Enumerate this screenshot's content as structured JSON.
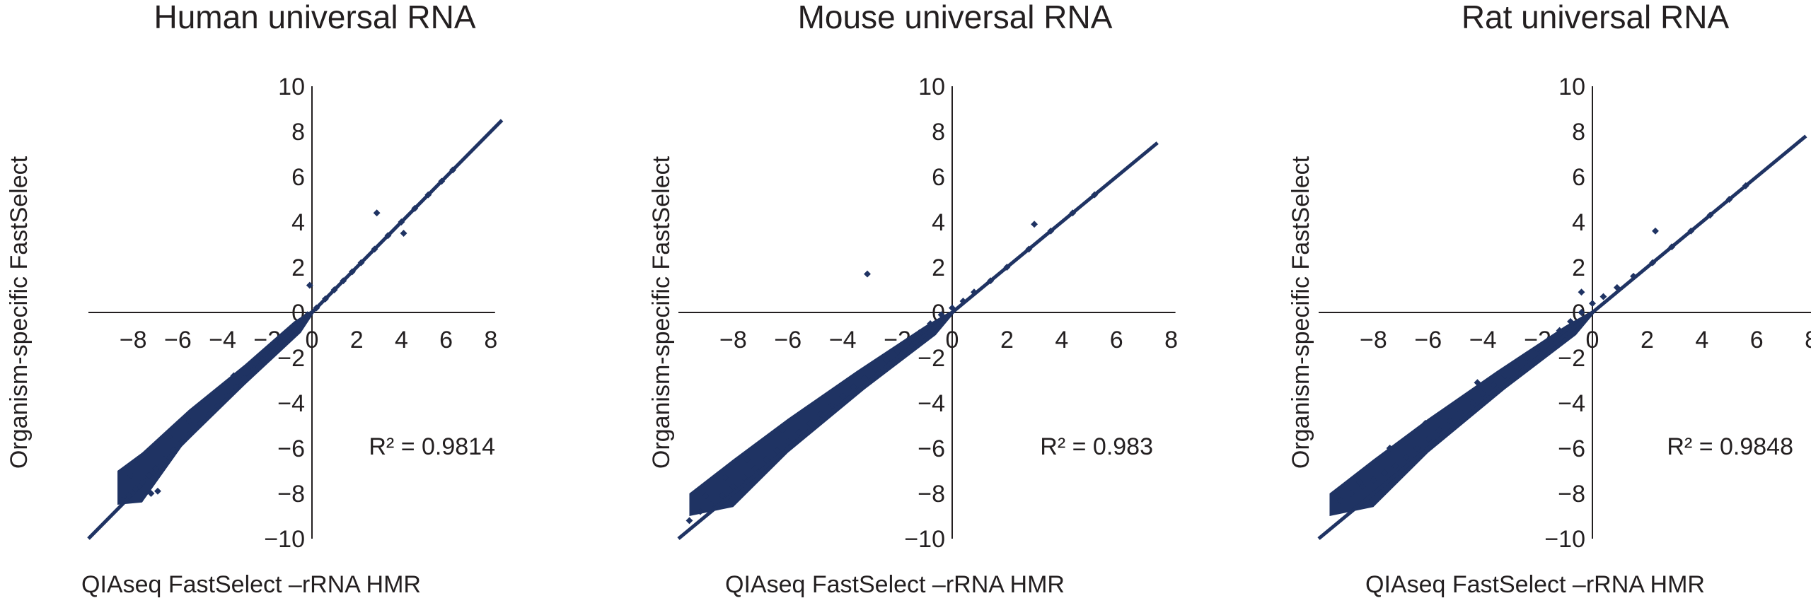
{
  "chart_data": [
    {
      "type": "scatter",
      "title": "Human universal RNA",
      "xlabel": "QIAseq FastSelect –rRNA HMR",
      "ylabel": "Organism-specific FastSelect",
      "xlim": [
        -10,
        8
      ],
      "ylim": [
        -10,
        10
      ],
      "xticks": [
        -8,
        -6,
        -4,
        -2,
        0,
        2,
        4,
        6,
        8
      ],
      "yticks": [
        -10,
        -8,
        -6,
        -4,
        -2,
        0,
        2,
        4,
        6,
        8,
        10
      ],
      "annotation": "R² = 0.9814",
      "grid": false,
      "trendline": {
        "x": [
          -10,
          8.5
        ],
        "y": [
          -10,
          8.5
        ]
      },
      "series": [
        {
          "color": "#1f3363",
          "x": [
            -8.5,
            -8.2,
            -7.9,
            -7.6,
            -7.3,
            -7.0,
            -6.6,
            -6.2,
            -5.8,
            -5.4,
            -5.0,
            -4.6,
            -4.2,
            -3.8,
            -3.4,
            -3.0,
            -2.6,
            -2.2,
            -1.8,
            -1.4,
            -1.0,
            -0.6,
            -0.2,
            0.2,
            0.6,
            1.0,
            1.4,
            1.8,
            2.2,
            2.8,
            3.4,
            4.0,
            4.6,
            5.2,
            5.8,
            6.3,
            -7.8,
            -6.9,
            -5.5,
            -3.5,
            -0.1,
            2.9,
            4.1,
            -8.1,
            -7.2,
            -6.4
          ],
          "y": [
            -8.3,
            -8.1,
            -7.8,
            -7.5,
            -7.2,
            -6.9,
            -6.5,
            -6.1,
            -5.7,
            -5.3,
            -4.9,
            -4.5,
            -4.1,
            -3.7,
            -3.3,
            -2.9,
            -2.5,
            -2.1,
            -1.7,
            -1.3,
            -0.9,
            -0.5,
            -0.1,
            0.2,
            0.6,
            1.0,
            1.4,
            1.8,
            2.2,
            2.8,
            3.4,
            4.0,
            4.6,
            5.2,
            5.8,
            6.3,
            -6.5,
            -7.9,
            -4.8,
            -2.8,
            1.2,
            4.4,
            3.5,
            -7.2,
            -8.0,
            -5.5
          ]
        }
      ]
    },
    {
      "type": "scatter",
      "title": "Mouse universal RNA",
      "xlabel": "QIAseq FastSelect –rRNA HMR",
      "ylabel": "Organism-specific FastSelect",
      "xlim": [
        -10,
        8
      ],
      "ylim": [
        -10,
        10
      ],
      "xticks": [
        -8,
        -6,
        -4,
        -2,
        0,
        2,
        4,
        6,
        8
      ],
      "yticks": [
        -10,
        -8,
        -6,
        -4,
        -2,
        0,
        2,
        4,
        6,
        8,
        10
      ],
      "annotation": "R² = 0.983",
      "grid": false,
      "trendline": {
        "x": [
          -10,
          7.5
        ],
        "y": [
          -10,
          7.5
        ]
      },
      "series": [
        {
          "color": "#1f3363",
          "x": [
            -9.6,
            -9.2,
            -8.8,
            -8.4,
            -8.0,
            -7.6,
            -7.2,
            -6.8,
            -6.4,
            -6.0,
            -5.6,
            -5.2,
            -4.8,
            -4.4,
            -4.0,
            -3.6,
            -3.2,
            -2.8,
            -2.4,
            -2.0,
            -1.6,
            -1.2,
            -0.8,
            -0.4,
            0.0,
            0.4,
            0.8,
            1.4,
            2.0,
            2.8,
            3.6,
            4.4,
            5.2,
            -3.1,
            3.0,
            -9.0,
            -8.3,
            -7.5,
            -6.2
          ],
          "y": [
            -9.2,
            -8.8,
            -8.5,
            -8.1,
            -7.7,
            -7.3,
            -6.9,
            -6.5,
            -6.1,
            -5.7,
            -5.3,
            -4.9,
            -4.5,
            -4.1,
            -3.7,
            -3.3,
            -2.9,
            -2.5,
            -2.1,
            -1.7,
            -1.3,
            -0.9,
            -0.5,
            -0.1,
            0.2,
            0.5,
            0.9,
            1.4,
            2.0,
            2.8,
            3.6,
            4.4,
            5.2,
            1.7,
            3.9,
            -8.1,
            -7.3,
            -6.5,
            -5.2
          ]
        }
      ]
    },
    {
      "type": "scatter",
      "title": "Rat universal RNA",
      "xlabel": "QIAseq FastSelect –rRNA HMR",
      "ylabel": "Organism-specific FastSelect",
      "xlim": [
        -10,
        8
      ],
      "ylim": [
        -10,
        10
      ],
      "xticks": [
        -8,
        -6,
        -4,
        -2,
        0,
        2,
        4,
        6,
        8
      ],
      "yticks": [
        -10,
        -8,
        -6,
        -4,
        -2,
        0,
        2,
        4,
        6,
        8,
        10
      ],
      "annotation": "R² = 0.9848",
      "grid": false,
      "trendline": {
        "x": [
          -10,
          7.8
        ],
        "y": [
          -10,
          7.8
        ]
      },
      "series": [
        {
          "color": "#1f3363",
          "x": [
            -9.2,
            -8.8,
            -8.4,
            -8.0,
            -7.6,
            -7.2,
            -6.8,
            -6.4,
            -6.0,
            -5.6,
            -5.2,
            -4.8,
            -4.4,
            -4.0,
            -3.6,
            -3.2,
            -2.8,
            -2.4,
            -2.0,
            -1.6,
            -1.2,
            -0.8,
            -0.4,
            0.0,
            0.4,
            0.9,
            1.5,
            2.2,
            2.9,
            3.6,
            4.3,
            5.0,
            5.6,
            2.3,
            -8.5,
            -7.4,
            -6.1,
            -4.2,
            -0.4
          ],
          "y": [
            -8.3,
            -8.0,
            -7.7,
            -7.4,
            -7.1,
            -6.8,
            -6.4,
            -6.0,
            -5.6,
            -5.2,
            -4.8,
            -4.4,
            -4.0,
            -3.6,
            -3.2,
            -2.8,
            -2.4,
            -2.0,
            -1.6,
            -1.2,
            -0.8,
            -0.4,
            0.0,
            0.4,
            0.7,
            1.1,
            1.6,
            2.2,
            2.9,
            3.6,
            4.3,
            5.0,
            5.6,
            3.6,
            -7.5,
            -6.0,
            -4.9,
            -3.1,
            0.9
          ]
        }
      ]
    }
  ]
}
